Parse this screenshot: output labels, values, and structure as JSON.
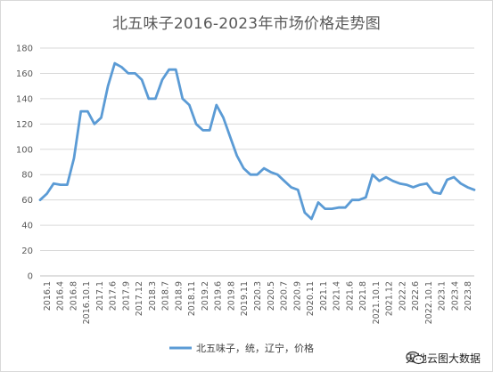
{
  "chart_data": {
    "type": "line",
    "title": "北五味子2016-2023年市场价格走势图",
    "xlabel": "",
    "ylabel": "",
    "ylim": [
      0,
      180
    ],
    "yticks": [
      0,
      20,
      40,
      60,
      80,
      100,
      120,
      140,
      160,
      180
    ],
    "grid": true,
    "legend_position": "bottom",
    "x_tick_labels": [
      "2016.1",
      "2016.4",
      "2016.8",
      "2016.10.1",
      "2017.1",
      "2017.6",
      "2017.9",
      "2017.12",
      "2018.3",
      "2018.7",
      "2018.9",
      "2018.11",
      "2019.2",
      "2019.6",
      "2019.8",
      "2019.11",
      "2020.3",
      "2020.5",
      "2020.7",
      "2020.9",
      "2020.11",
      "2021.1",
      "2021.4",
      "2021.6",
      "2021.8",
      "2021.10.1",
      "2021.12",
      "2022.2",
      "2022.6",
      "2022.10.1",
      "2023.1",
      "2023.4",
      "2023.8"
    ],
    "series": [
      {
        "name": "北五味子，统，辽宁，价格",
        "color": "#5b9bd5",
        "values": [
          60,
          65,
          73,
          72,
          72,
          93,
          130,
          130,
          120,
          125,
          150,
          168,
          165,
          160,
          160,
          155,
          140,
          140,
          155,
          163,
          163,
          140,
          135,
          120,
          115,
          115,
          135,
          125,
          110,
          95,
          85,
          80,
          80,
          85,
          82,
          80,
          75,
          70,
          68,
          50,
          45,
          58,
          53,
          53,
          54,
          54,
          60,
          60,
          62,
          80,
          75,
          78,
          75,
          73,
          72,
          70,
          72,
          73,
          66,
          65,
          76,
          78,
          73,
          70,
          68
        ]
      }
    ]
  },
  "watermark": {
    "icon": "wechat-icon",
    "text": "天地云图大数据"
  }
}
